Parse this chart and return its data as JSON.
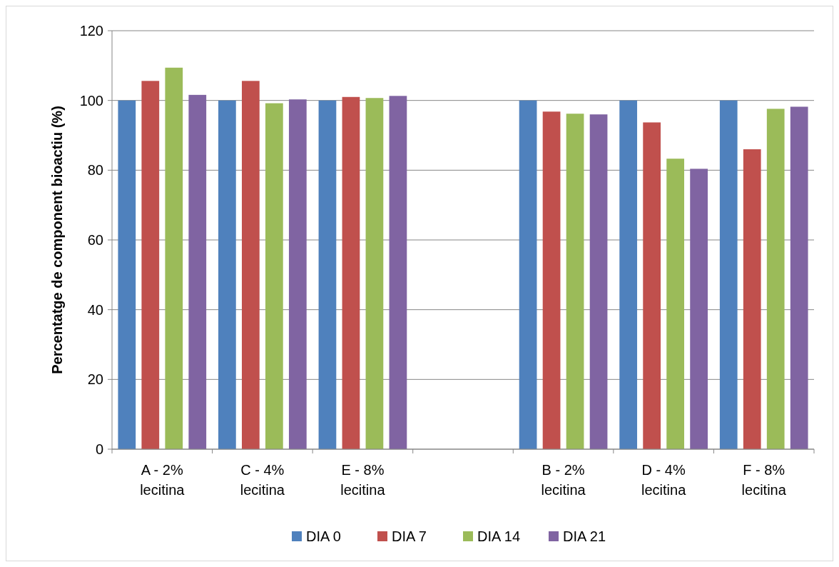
{
  "chart_data": {
    "type": "bar",
    "ylabel": "Percentatge de component bioactiu (%)",
    "categories": [
      "A - 2%\nlecitina",
      "C - 4%\nlecitina",
      "E - 8%\nlecitina",
      null,
      "B - 2%\nlecitina",
      "D - 4%\nlecitina",
      "F - 8%\nlecitina"
    ],
    "series": [
      {
        "name": "DIA 0",
        "color": "#4f81bd",
        "values": [
          100,
          100,
          100,
          null,
          100,
          100,
          100
        ]
      },
      {
        "name": "DIA 7",
        "color": "#c0504d",
        "values": [
          105.6,
          105.6,
          101,
          null,
          96.8,
          93.7,
          86
        ]
      },
      {
        "name": "DIA 14",
        "color": "#9bbb59",
        "values": [
          109.4,
          99.2,
          100.7,
          null,
          96.2,
          83.3,
          97.6
        ]
      },
      {
        "name": "DIA 21",
        "color": "#8064a2",
        "values": [
          101.6,
          100.3,
          101.3,
          null,
          96,
          80.4,
          98.2
        ]
      }
    ],
    "ylim": [
      0,
      120
    ],
    "yticks": [
      0,
      20,
      40,
      60,
      80,
      100,
      120
    ],
    "grid": "y",
    "legend": "bottom"
  }
}
